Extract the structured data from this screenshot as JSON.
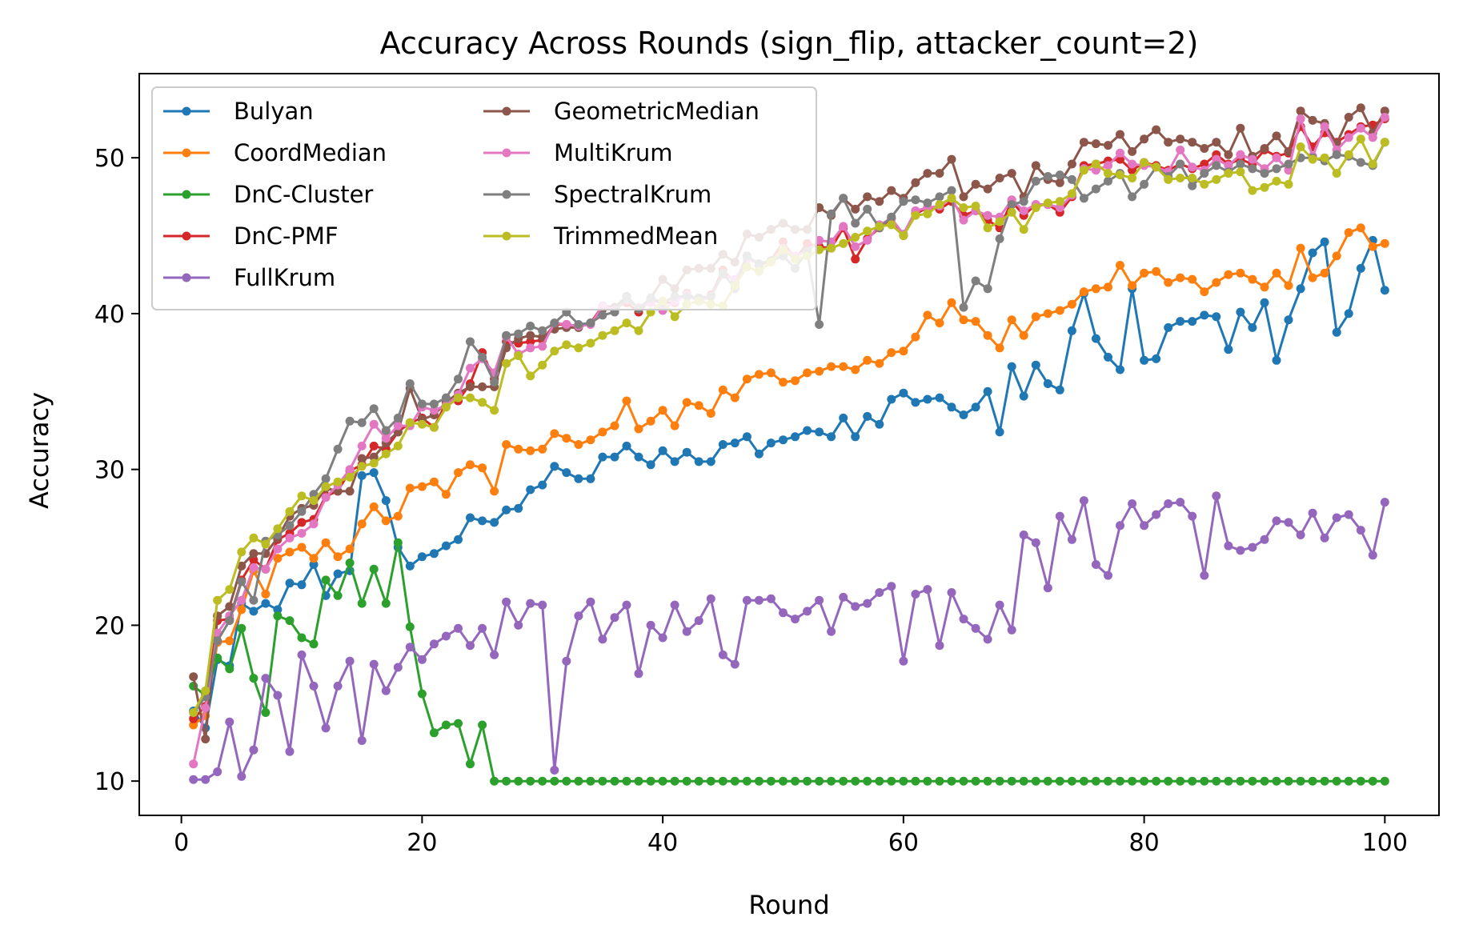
{
  "chart_data": {
    "type": "line",
    "title": "Accuracy Across Rounds (sign_flip, attacker_count=2)",
    "xlabel": "Round",
    "ylabel": "Accuracy",
    "xlim": [
      -3.5,
      104.5
    ],
    "ylim": [
      7.8,
      55.4
    ],
    "xticks": [
      0,
      20,
      40,
      60,
      80,
      100
    ],
    "yticks": [
      10,
      20,
      30,
      40,
      50
    ],
    "grid": false,
    "legend": {
      "placement": "top-left",
      "columns": 2
    },
    "x": [
      1,
      2,
      3,
      4,
      5,
      6,
      7,
      8,
      9,
      10,
      11,
      12,
      13,
      14,
      15,
      16,
      17,
      18,
      19,
      20,
      21,
      22,
      23,
      24,
      25,
      26,
      27,
      28,
      29,
      30,
      31,
      32,
      33,
      34,
      35,
      36,
      37,
      38,
      39,
      40,
      41,
      42,
      43,
      44,
      45,
      46,
      47,
      48,
      49,
      50,
      51,
      52,
      53,
      54,
      55,
      56,
      57,
      58,
      59,
      60,
      61,
      62,
      63,
      64,
      65,
      66,
      67,
      68,
      69,
      70,
      71,
      72,
      73,
      74,
      75,
      76,
      77,
      78,
      79,
      80,
      81,
      82,
      83,
      84,
      85,
      86,
      87,
      88,
      89,
      90,
      91,
      92,
      93,
      94,
      95,
      96,
      97,
      98,
      99,
      100
    ],
    "series": [
      {
        "name": "Bulyan",
        "color": "#1f77b4",
        "values": [
          14.5,
          13.4,
          17.8,
          17.4,
          21.4,
          20.9,
          21.4,
          21.0,
          22.7,
          22.6,
          23.9,
          21.9,
          23.3,
          23.5,
          29.6,
          29.8,
          28.0,
          25.0,
          23.8,
          24.4,
          24.6,
          25.1,
          25.5,
          26.9,
          26.7,
          26.6,
          27.4,
          27.5,
          28.7,
          29.0,
          30.2,
          29.8,
          29.4,
          29.4,
          30.8,
          30.8,
          31.5,
          30.8,
          30.3,
          31.2,
          30.5,
          31.1,
          30.5,
          30.5,
          31.6,
          31.7,
          32.1,
          31.0,
          31.7,
          31.9,
          32.1,
          32.5,
          32.4,
          32.1,
          33.3,
          32.1,
          33.4,
          32.9,
          34.5,
          34.9,
          34.3,
          34.5,
          34.6,
          34.0,
          33.5,
          34.0,
          35.0,
          32.4,
          36.6,
          34.7,
          36.7,
          35.5,
          35.1,
          38.9,
          41.3,
          38.4,
          37.2,
          36.4,
          41.6,
          37.0,
          37.1,
          39.1,
          39.5,
          39.5,
          39.9,
          39.8,
          37.7,
          40.1,
          39.1,
          40.7,
          37.0,
          39.6,
          41.6,
          43.9,
          44.6,
          38.8,
          40.0,
          42.9,
          44.7,
          41.5
        ]
      },
      {
        "name": "CoordMedian",
        "color": "#ff7f0e",
        "values": [
          13.6,
          14.2,
          18.9,
          19.0,
          21.0,
          23.5,
          22.0,
          24.3,
          24.7,
          25.0,
          24.3,
          25.3,
          24.4,
          24.9,
          26.5,
          27.6,
          26.7,
          27.0,
          28.8,
          28.9,
          29.2,
          28.4,
          29.8,
          30.3,
          30.1,
          28.6,
          31.6,
          31.3,
          31.2,
          31.3,
          32.3,
          32.0,
          31.6,
          31.9,
          32.4,
          32.8,
          34.4,
          32.6,
          33.1,
          33.8,
          32.8,
          34.3,
          34.1,
          33.6,
          35.1,
          34.6,
          35.8,
          36.1,
          36.2,
          35.6,
          35.7,
          36.2,
          36.3,
          36.6,
          36.6,
          36.4,
          37.0,
          36.8,
          37.5,
          37.6,
          38.5,
          39.9,
          39.4,
          40.7,
          39.6,
          39.5,
          38.6,
          37.8,
          39.6,
          38.6,
          39.8,
          40.0,
          40.2,
          40.6,
          41.4,
          41.6,
          41.7,
          43.1,
          41.8,
          42.6,
          42.7,
          42.0,
          42.3,
          42.2,
          41.4,
          42.0,
          42.5,
          42.6,
          42.2,
          41.7,
          42.6,
          41.8,
          44.2,
          42.3,
          42.6,
          43.7,
          45.2,
          45.5,
          44.3,
          44.5
        ]
      },
      {
        "name": "DnC-Cluster",
        "color": "#2ca02c",
        "values": [
          16.1,
          15.5,
          17.9,
          17.2,
          19.8,
          16.6,
          14.4,
          20.6,
          20.3,
          19.2,
          18.8,
          22.9,
          21.9,
          24.0,
          21.4,
          23.6,
          21.4,
          25.3,
          19.9,
          15.6,
          13.1,
          13.6,
          13.7,
          11.1,
          13.6,
          10.0,
          10.0,
          10.0,
          10.0,
          10.0,
          10.0,
          10.0,
          10.0,
          10.0,
          10.0,
          10.0,
          10.0,
          10.0,
          10.0,
          10.0,
          10.0,
          10.0,
          10.0,
          10.0,
          10.0,
          10.0,
          10.0,
          10.0,
          10.0,
          10.0,
          10.0,
          10.0,
          10.0,
          10.0,
          10.0,
          10.0,
          10.0,
          10.0,
          10.0,
          10.0,
          10.0,
          10.0,
          10.0,
          10.0,
          10.0,
          10.0,
          10.0,
          10.0,
          10.0,
          10.0,
          10.0,
          10.0,
          10.0,
          10.0,
          10.0,
          10.0,
          10.0,
          10.0,
          10.0,
          10.0,
          10.0,
          10.0,
          10.0,
          10.0,
          10.0,
          10.0,
          10.0,
          10.0,
          10.0,
          10.0,
          10.0,
          10.0,
          10.0,
          10.0,
          10.0,
          10.0,
          10.0,
          10.0,
          10.0,
          10.0
        ]
      },
      {
        "name": "DnC-PMF",
        "color": "#d62728",
        "values": [
          14.0,
          14.8,
          20.3,
          20.4,
          22.9,
          24.2,
          23.6,
          25.5,
          25.9,
          26.6,
          26.8,
          28.3,
          28.6,
          29.9,
          30.3,
          31.5,
          31.3,
          32.4,
          33.0,
          33.3,
          32.7,
          34.3,
          34.4,
          35.5,
          37.5,
          35.8,
          38.2,
          38.1,
          38.2,
          38.3,
          39.3,
          39.3,
          39.2,
          39.4,
          40.5,
          40.4,
          40.7,
          40.1,
          40.9,
          40.7,
          40.7,
          41.3,
          40.8,
          41.2,
          42.8,
          42.0,
          43.7,
          43.1,
          43.4,
          44.6,
          43.5,
          44.5,
          44.3,
          44.2,
          45.5,
          43.5,
          44.8,
          45.5,
          46.1,
          45.0,
          46.4,
          46.8,
          46.7,
          47.2,
          46.3,
          46.6,
          46.0,
          45.5,
          47.2,
          46.3,
          47.0,
          47.0,
          46.5,
          47.5,
          49.5,
          49.6,
          49.8,
          49.9,
          49.2,
          49.7,
          49.5,
          49.2,
          49.6,
          49.3,
          49.6,
          50.2,
          49.6,
          49.9,
          49.6,
          50.5,
          50.1,
          50.3,
          52.0,
          50.7,
          51.6,
          51.0,
          51.5,
          52.0,
          52.1,
          52.5
        ]
      },
      {
        "name": "FullKrum",
        "color": "#9467bd",
        "values": [
          10.1,
          10.1,
          10.6,
          13.8,
          10.3,
          12.0,
          16.6,
          15.5,
          11.9,
          18.1,
          16.1,
          13.4,
          16.1,
          17.7,
          12.6,
          17.5,
          15.8,
          17.3,
          18.6,
          17.8,
          18.8,
          19.3,
          19.8,
          18.7,
          19.8,
          18.1,
          21.5,
          20.0,
          21.4,
          21.3,
          10.7,
          17.7,
          20.6,
          21.5,
          19.1,
          20.5,
          21.3,
          16.9,
          20.0,
          19.2,
          21.3,
          19.6,
          20.3,
          21.7,
          18.1,
          17.5,
          21.6,
          21.6,
          21.7,
          20.8,
          20.4,
          20.9,
          21.6,
          19.6,
          21.8,
          21.2,
          21.4,
          22.1,
          22.5,
          17.7,
          22.0,
          22.3,
          18.7,
          22.1,
          20.4,
          19.8,
          19.1,
          21.3,
          19.7,
          25.8,
          25.3,
          22.4,
          27.0,
          25.5,
          28.0,
          23.9,
          23.2,
          26.4,
          27.8,
          26.4,
          27.1,
          27.8,
          27.9,
          27.0,
          23.2,
          28.3,
          25.1,
          24.8,
          25.0,
          25.5,
          26.7,
          26.6,
          25.8,
          27.2,
          25.6,
          26.9,
          27.1,
          26.1,
          24.5,
          27.9
        ]
      },
      {
        "name": "GeometricMedian",
        "color": "#8c564b",
        "values": [
          16.7,
          12.7,
          20.6,
          21.2,
          23.8,
          24.6,
          24.6,
          25.6,
          27.0,
          27.5,
          27.7,
          28.8,
          28.6,
          28.6,
          30.7,
          30.8,
          31.7,
          32.4,
          35.2,
          33.2,
          33.5,
          34.3,
          34.9,
          35.3,
          35.3,
          35.3,
          37.8,
          38.4,
          38.6,
          38.5,
          39.0,
          39.1,
          39.1,
          39.4,
          40.3,
          40.4,
          41.1,
          40.3,
          41.0,
          42.2,
          41.6,
          42.8,
          42.9,
          42.9,
          43.8,
          43.3,
          45.1,
          44.9,
          45.4,
          45.8,
          45.4,
          45.4,
          46.8,
          46.3,
          47.4,
          46.7,
          47.5,
          47.2,
          47.9,
          47.4,
          48.4,
          49.0,
          49.0,
          49.9,
          47.5,
          48.3,
          48.0,
          48.7,
          49.0,
          47.5,
          49.5,
          48.6,
          48.4,
          49.6,
          51.0,
          50.9,
          50.8,
          51.5,
          50.4,
          51.2,
          51.8,
          51.0,
          51.2,
          51.0,
          50.6,
          51.0,
          50.2,
          51.9,
          50.1,
          50.6,
          51.4,
          50.4,
          53.0,
          52.4,
          52.2,
          50.9,
          52.6,
          53.2,
          51.6,
          53.0
        ]
      },
      {
        "name": "MultiKrum",
        "color": "#e377c2",
        "values": [
          11.1,
          14.7,
          19.5,
          20.6,
          21.6,
          23.7,
          23.6,
          24.9,
          25.6,
          25.9,
          26.5,
          28.2,
          29.0,
          30.0,
          31.5,
          32.9,
          32.0,
          32.8,
          32.8,
          34.0,
          33.8,
          34.1,
          34.8,
          36.5,
          37.1,
          36.2,
          38.5,
          37.4,
          37.8,
          37.9,
          39.4,
          39.3,
          39.2,
          39.3,
          40.5,
          40.2,
          40.9,
          40.4,
          40.7,
          40.2,
          40.8,
          41.2,
          40.8,
          41.1,
          42.5,
          42.2,
          43.5,
          43.2,
          43.4,
          44.2,
          43.7,
          44.0,
          44.7,
          44.6,
          45.6,
          44.3,
          44.7,
          45.7,
          46.1,
          45.1,
          46.6,
          46.8,
          46.9,
          47.4,
          46.0,
          46.6,
          46.3,
          46.2,
          47.3,
          46.6,
          47.0,
          47.0,
          46.8,
          47.6,
          49.3,
          49.2,
          49.5,
          50.3,
          49.6,
          49.5,
          49.4,
          49.1,
          50.5,
          49.4,
          49.2,
          49.9,
          49.5,
          50.2,
          49.9,
          49.3,
          50.0,
          49.2,
          52.5,
          50.1,
          52.0,
          50.5,
          51.3,
          51.9,
          51.3,
          52.6
        ]
      },
      {
        "name": "SpectralKrum",
        "color": "#7f7f7f",
        "values": [
          14.4,
          15.4,
          19.0,
          20.3,
          22.8,
          21.6,
          25.4,
          25.8,
          26.4,
          27.3,
          28.4,
          29.4,
          31.3,
          33.1,
          33.0,
          33.9,
          32.5,
          33.3,
          35.5,
          34.2,
          34.2,
          34.6,
          35.8,
          38.2,
          37.2,
          35.6,
          38.6,
          38.7,
          39.2,
          38.9,
          39.4,
          40.1,
          39.3,
          39.4,
          39.9,
          40.1,
          41.0,
          40.3,
          41.0,
          40.7,
          41.1,
          41.1,
          41.0,
          41.1,
          42.6,
          41.6,
          43.7,
          43.2,
          43.4,
          43.7,
          42.9,
          44.0,
          39.3,
          46.4,
          47.4,
          45.8,
          46.7,
          45.5,
          46.2,
          47.2,
          47.3,
          47.1,
          47.5,
          47.9,
          40.4,
          42.1,
          41.6,
          44.8,
          47.0,
          47.2,
          48.5,
          48.8,
          48.9,
          48.6,
          47.4,
          48.0,
          48.5,
          49.0,
          47.5,
          48.3,
          49.4,
          48.8,
          49.6,
          48.2,
          49.0,
          49.5,
          49.1,
          49.6,
          49.3,
          49.0,
          49.3,
          49.6,
          50.0,
          50.0,
          49.8,
          50.2,
          50.1,
          49.7,
          49.5,
          51.0
        ]
      },
      {
        "name": "TrimmedMean",
        "color": "#bcbd22",
        "values": [
          14.4,
          15.8,
          21.6,
          22.3,
          24.7,
          25.6,
          25.2,
          26.2,
          27.3,
          28.3,
          28.0,
          28.9,
          29.2,
          29.5,
          30.2,
          30.4,
          31.0,
          31.5,
          33.0,
          32.9,
          32.7,
          34.0,
          34.6,
          34.6,
          34.3,
          33.8,
          36.8,
          37.3,
          36.0,
          36.7,
          37.6,
          38.0,
          37.8,
          38.1,
          38.6,
          38.9,
          39.4,
          38.9,
          40.1,
          40.8,
          39.8,
          40.6,
          40.8,
          40.6,
          40.5,
          41.8,
          43.0,
          42.7,
          43.3,
          44.1,
          43.5,
          43.7,
          44.1,
          44.2,
          44.5,
          44.9,
          45.3,
          45.6,
          45.7,
          45.0,
          46.3,
          46.4,
          47.0,
          47.4,
          46.8,
          46.9,
          45.5,
          45.9,
          46.5,
          45.4,
          46.8,
          47.1,
          47.2,
          47.7,
          49.2,
          49.6,
          49.0,
          48.9,
          48.7,
          49.7,
          49.4,
          48.6,
          48.7,
          48.7,
          48.3,
          48.6,
          49.0,
          49.1,
          47.9,
          48.1,
          48.5,
          48.3,
          50.7,
          49.9,
          50.0,
          49.0,
          50.2,
          51.2,
          49.6,
          51.0
        ]
      }
    ]
  }
}
